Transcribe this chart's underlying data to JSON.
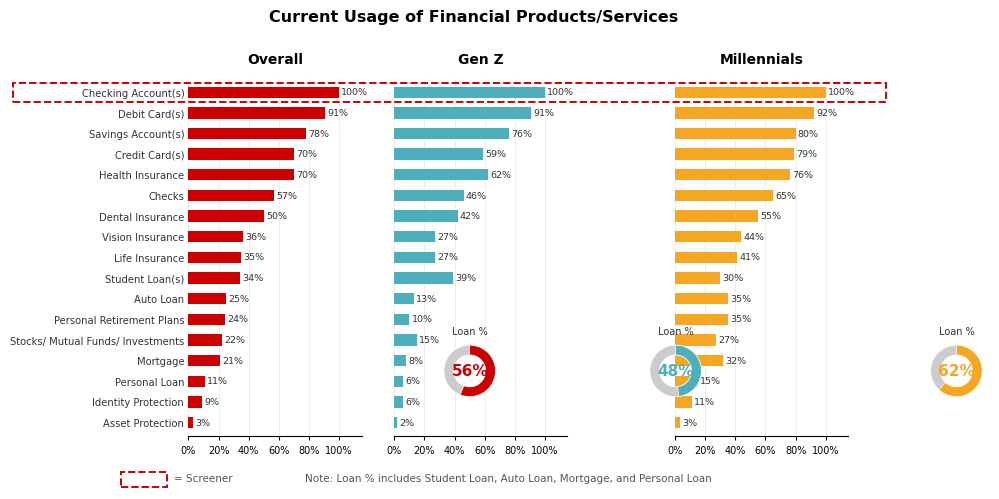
{
  "title": "Current Usage of Financial Products/Services",
  "categories": [
    "Checking Account(s)",
    "Debit Card(s)",
    "Savings Account(s)",
    "Credit Card(s)",
    "Health Insurance",
    "Checks",
    "Dental Insurance",
    "Vision Insurance",
    "Life Insurance",
    "Student Loan(s)",
    "Auto Loan",
    "Personal Retirement Plans",
    "Stocks/ Mutual Funds/ Investments",
    "Mortgage",
    "Personal Loan",
    "Identity Protection",
    "Asset Protection"
  ],
  "overall": [
    100,
    91,
    78,
    70,
    70,
    57,
    50,
    36,
    35,
    34,
    25,
    24,
    22,
    21,
    11,
    9,
    3
  ],
  "genz": [
    100,
    91,
    76,
    59,
    62,
    46,
    42,
    27,
    27,
    39,
    13,
    10,
    15,
    8,
    6,
    6,
    2
  ],
  "millennials": [
    100,
    92,
    80,
    79,
    76,
    65,
    55,
    44,
    41,
    30,
    35,
    35,
    27,
    32,
    15,
    11,
    3
  ],
  "overall_loan_pct": 56,
  "genz_loan_pct": 48,
  "millennials_loan_pct": 62,
  "color_overall": "#CC0000",
  "color_genz": "#4DAEBC",
  "color_millennials": "#F5A623",
  "color_screener_border": "#CC0000",
  "color_donut_bg": "#CCCCCC",
  "col_headers": [
    "Overall",
    "Gen Z",
    "Millennials"
  ],
  "note": "Note: Loan % includes Student Loan, Auto Loan, Mortgage, and Personal Loan",
  "screener_label": "= Screener",
  "loan_label": "Loan %",
  "bar_xlim": 115,
  "xticks": [
    0,
    20,
    40,
    60,
    80,
    100
  ],
  "xtick_labels": [
    "0%",
    "20%",
    "40%",
    "60%",
    "80%",
    "100%"
  ]
}
